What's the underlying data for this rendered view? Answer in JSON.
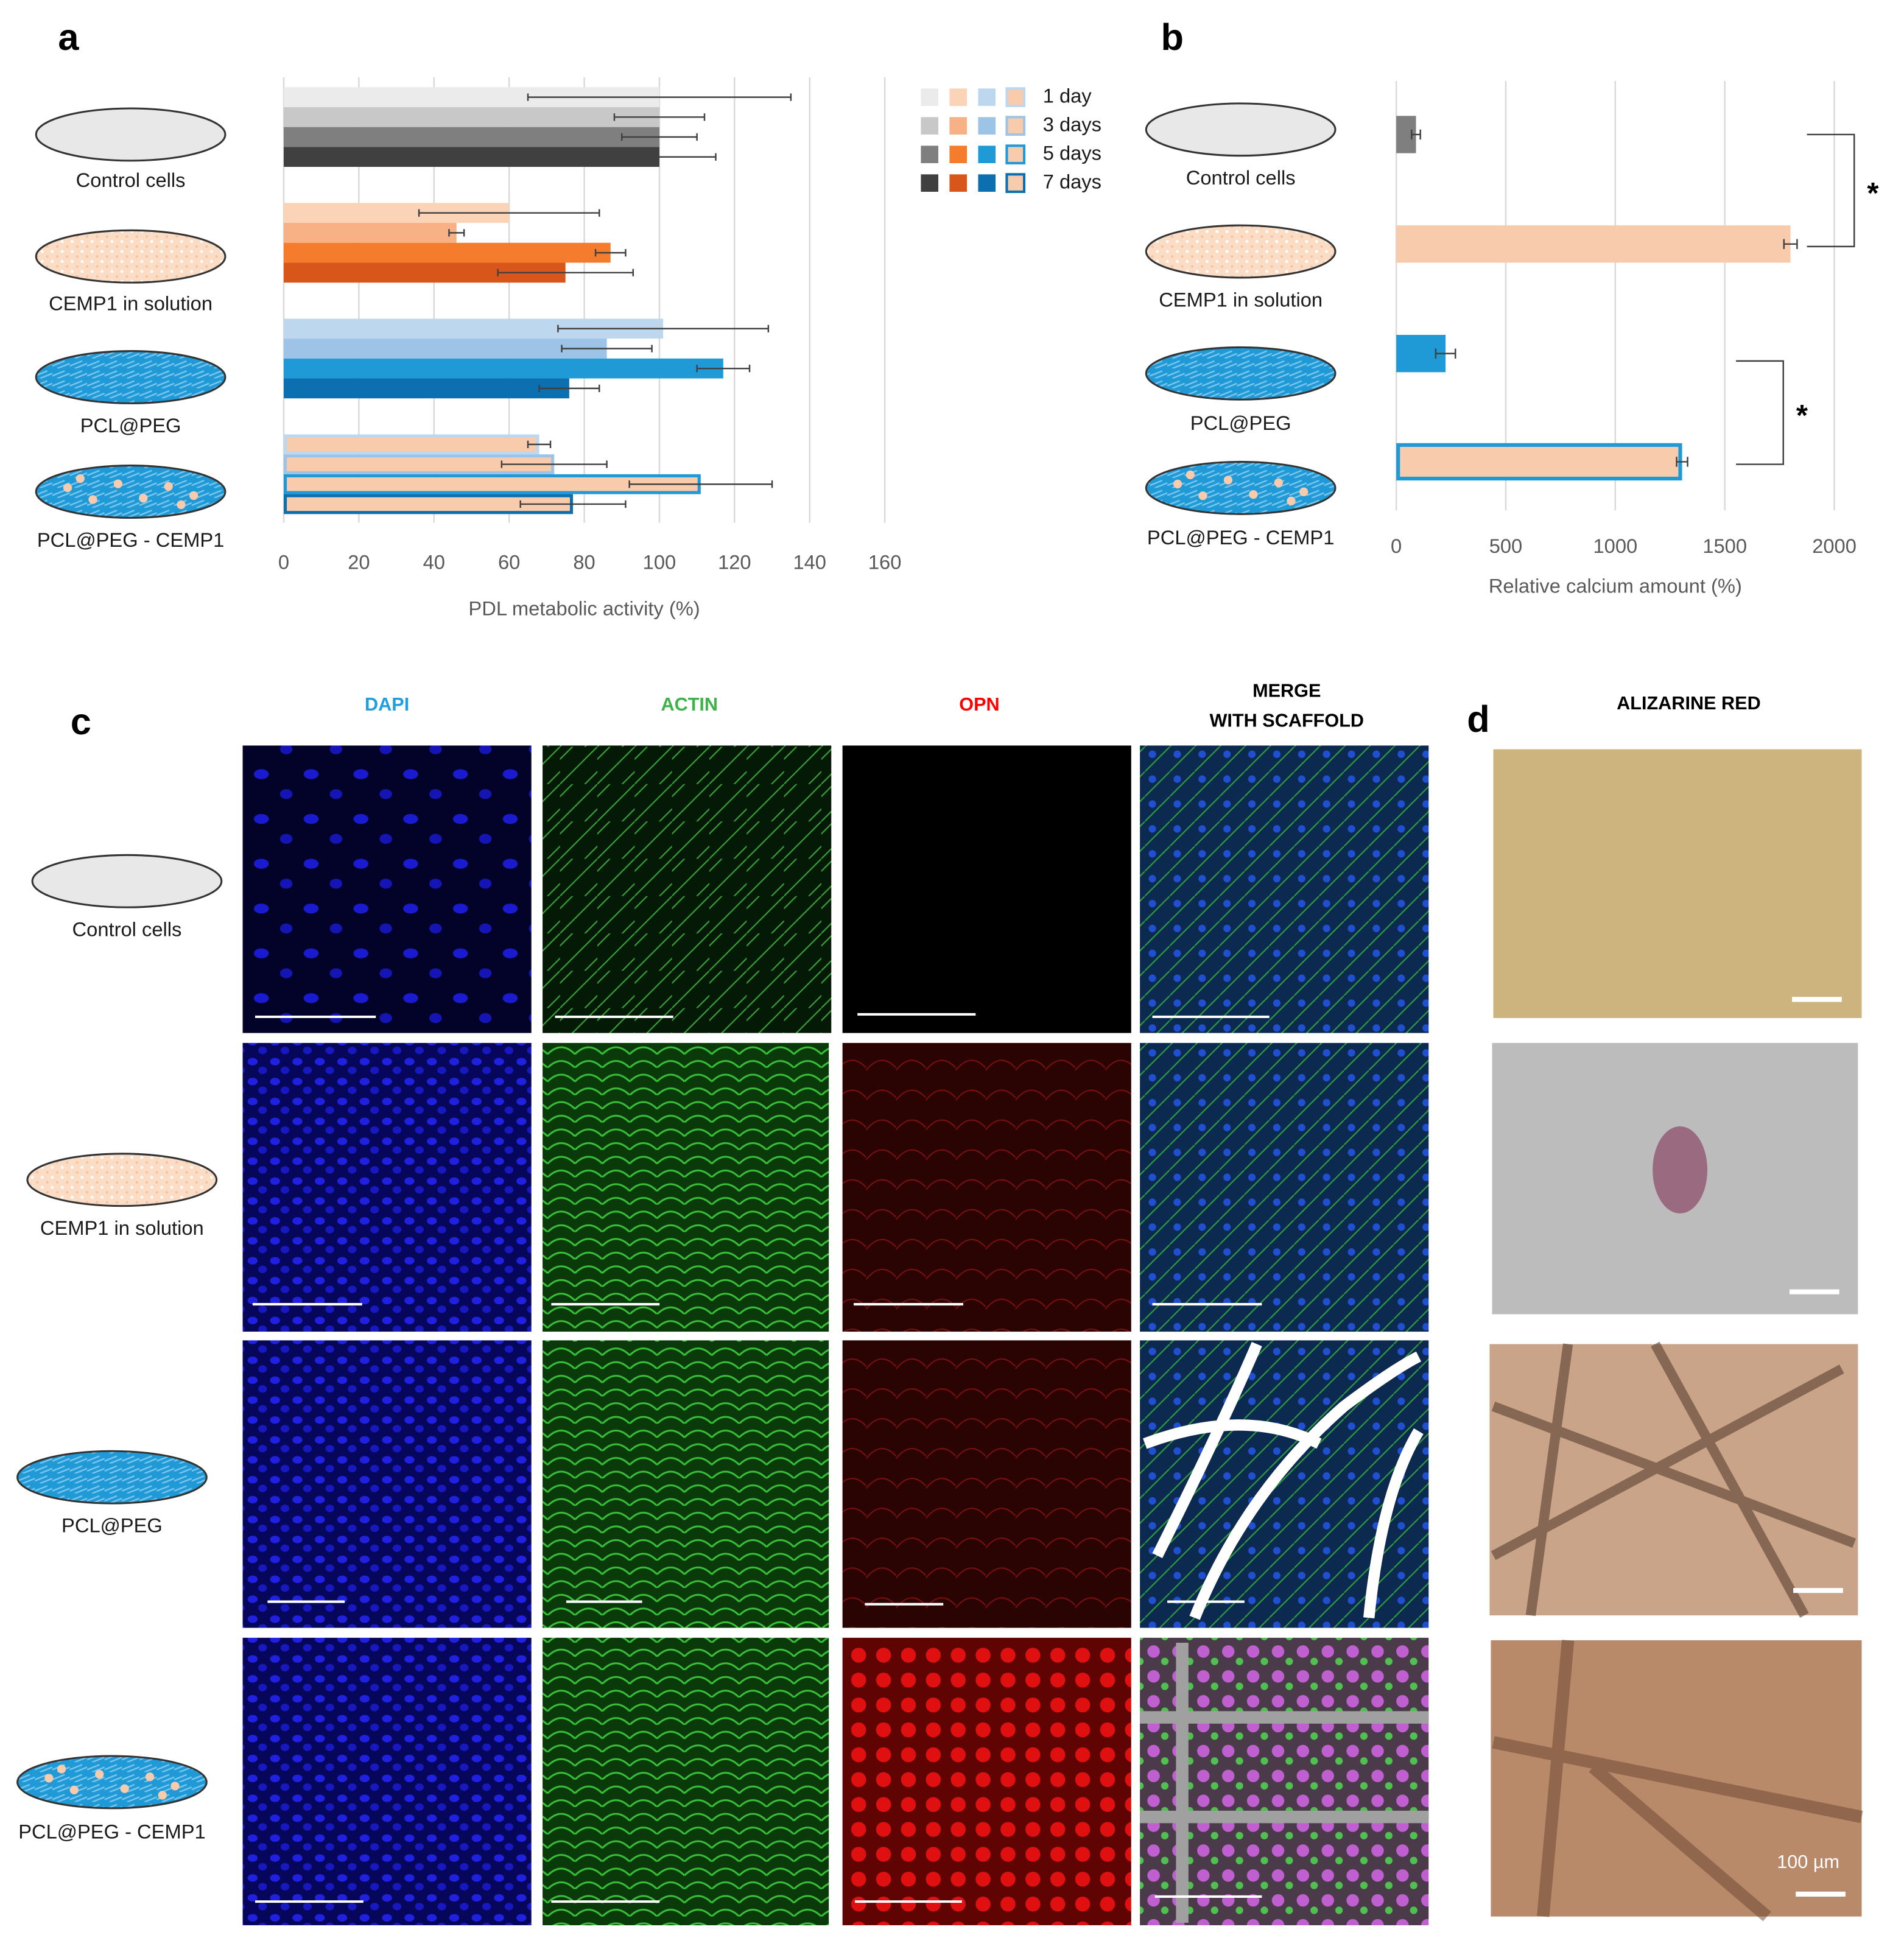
{
  "chart_data": [
    {
      "type": "bar",
      "orientation": "horizontal",
      "panel": "a",
      "categories": [
        "Control cells",
        "CEMP1 in solution",
        "PCL@PEG",
        "PCL@PEG - CEMP1"
      ],
      "xlabel": "PDL metabolic activity (%)",
      "xlim": [
        0,
        160
      ],
      "xticks": [
        0,
        20,
        40,
        60,
        80,
        100,
        120,
        140,
        160
      ],
      "grid": true,
      "legend": "upper right",
      "series": [
        {
          "name": "1 day",
          "colors": [
            "#ebebeb",
            "#fbd3b6",
            "#bdd7ee",
            "#f8cbad"
          ],
          "edgecolors": [
            "#ebebeb",
            "#fbd3b6",
            "#bdd7ee",
            "#bdd7ee"
          ],
          "values": [
            100,
            60,
            101,
            68
          ],
          "errors": [
            35,
            24,
            28,
            3
          ]
        },
        {
          "name": "3 days",
          "colors": [
            "#c8c8c8",
            "#f8b184",
            "#9dc3e6",
            "#f8cbad"
          ],
          "edgecolors": [
            "#c8c8c8",
            "#f8b184",
            "#9dc3e6",
            "#9dc3e6"
          ],
          "values": [
            100,
            46,
            86,
            72
          ],
          "errors": [
            12,
            2,
            12,
            14
          ]
        },
        {
          "name": "5 days",
          "colors": [
            "#7f7f7f",
            "#f47c2c",
            "#1f9ad6",
            "#f8cbad"
          ],
          "edgecolors": [
            "#7f7f7f",
            "#f47c2c",
            "#1f9ad6",
            "#1f9ad6"
          ],
          "values": [
            100,
            87,
            117,
            111
          ],
          "errors": [
            10,
            4,
            7,
            19
          ]
        },
        {
          "name": "7 days",
          "colors": [
            "#404040",
            "#d9561a",
            "#0c6fb0",
            "#f8cbad"
          ],
          "edgecolors": [
            "#404040",
            "#d9561a",
            "#0c6fb0",
            "#0c6fb0"
          ],
          "values": [
            100,
            75,
            76,
            77
          ],
          "errors": [
            15,
            18,
            8,
            14
          ]
        }
      ]
    },
    {
      "type": "bar",
      "orientation": "horizontal",
      "panel": "b",
      "categories": [
        "Control cells",
        "CEMP1 in solution",
        "PCL@PEG",
        "PCL@PEG - CEMP1"
      ],
      "xlabel": "Relative calcium amount (%)",
      "xlim": [
        0,
        2000
      ],
      "xticks": [
        0,
        500,
        1000,
        1500,
        2000
      ],
      "grid": true,
      "colors": [
        "#7f7f7f",
        "#f8cbad",
        "#1f9ad6",
        "#f8cbad"
      ],
      "edgecolors": [
        "#7f7f7f",
        "#f8cbad",
        "#1f9ad6",
        "#1f9ad6"
      ],
      "values": [
        90,
        1800,
        225,
        1305
      ],
      "errors": [
        20,
        30,
        45,
        25
      ],
      "annotations": [
        "*",
        "*"
      ]
    }
  ],
  "microscopy": {
    "panel": "c",
    "columns": [
      [
        "DAPI"
      ],
      [
        "ACTIN"
      ],
      [
        "OPN"
      ],
      [
        "MERGE",
        "WITH SCAFFOLD"
      ]
    ],
    "column_colors": [
      "#1e9fe0",
      "#3cb44a",
      "#ff0000",
      "#000000"
    ],
    "rows": [
      "Control cells",
      "CEMP1 in solution",
      "PCL@PEG",
      "PCL@PEG - CEMP1"
    ]
  },
  "alizarin": {
    "panel": "d",
    "title": "ALIZARINE RED",
    "scale_label": "100 µm"
  }
}
